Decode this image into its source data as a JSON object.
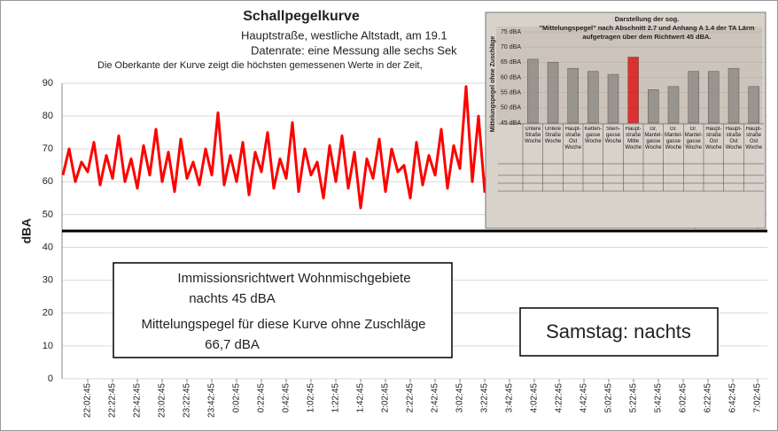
{
  "chart_data": [
    {
      "type": "line",
      "title": "Schallpegelkurve",
      "subtitles": [
        "Hauptstraße, westliche Altstadt, am 19.1",
        "Datenrate:  eine Messung alle sechs Sek",
        "Die Oberkante der Kurve zeigt die höchsten  gemessenen Werte  in der Zeit,"
      ],
      "ylabel": "dBA",
      "ylim": [
        0,
        90
      ],
      "yticks": [
        0,
        10,
        20,
        30,
        40,
        50,
        60,
        70,
        80,
        90
      ],
      "grid": true,
      "reference_line": 45,
      "color": "#ff0000",
      "categories": [
        null,
        null,
        null,
        null,
        "22:02:45",
        null,
        null,
        null,
        "22:22:45",
        null,
        null,
        null,
        "22:42:45",
        null,
        null,
        null,
        "23:02:45",
        null,
        null,
        null,
        "23:22:45",
        null,
        null,
        null,
        "23:42:45",
        null,
        null,
        null,
        "0:02:45",
        null,
        null,
        null,
        "0:22:45",
        null,
        null,
        null,
        "0:42:45",
        null,
        null,
        null,
        "1:02:45",
        null,
        null,
        null,
        "1:22:45",
        null,
        null,
        null,
        "1:42:45",
        null,
        null,
        null,
        "2:02:45",
        null,
        null,
        null,
        "2:22:45",
        null,
        null,
        null,
        "2:42:45",
        null,
        null,
        null,
        "3:02:45",
        null,
        null,
        null,
        "3:22:45",
        null,
        null,
        null,
        "3:42:45",
        null,
        null,
        null,
        "4:02:45",
        null,
        null,
        null,
        "4:22:45",
        null,
        null,
        null,
        "4:42:45",
        null,
        null,
        null,
        "5:02:45",
        null,
        null,
        null,
        "5:22:45",
        null,
        null,
        null,
        "5:42:45",
        null,
        null,
        null,
        "6:02:45",
        null,
        null,
        null,
        "6:22:45",
        null,
        null,
        null,
        "6:42:45",
        null,
        null,
        null,
        "7:02:45",
        null
      ],
      "values": [
        62,
        70,
        60,
        66,
        63,
        72,
        59,
        68,
        61,
        74,
        60,
        67,
        58,
        71,
        62,
        76,
        60,
        69,
        57,
        73,
        61,
        66,
        59,
        70,
        62,
        81,
        59,
        68,
        60,
        72,
        56,
        69,
        63,
        75,
        58,
        67,
        61,
        78,
        57,
        70,
        62,
        66,
        55,
        71,
        60,
        74,
        58,
        69,
        52,
        67,
        61,
        73,
        57,
        70,
        63,
        65,
        55,
        72,
        59,
        68,
        62,
        76,
        58,
        71,
        64,
        89,
        60,
        80,
        57,
        74,
        62,
        70,
        55,
        66,
        48,
        65,
        58,
        72,
        60,
        68,
        57,
        71,
        62,
        67,
        59,
        73,
        56,
        69,
        61,
        66,
        58,
        70,
        63,
        68,
        55,
        70,
        52,
        64,
        47,
        60,
        50,
        58,
        46,
        62,
        49,
        56,
        47,
        59,
        51,
        57,
        47,
        55,
        46,
        63
      ],
      "annotations": [
        [
          "Immissionsrichtwert Wohnmischgebiete",
          "nachts 45 dBA",
          "Mittelungspegel für diese Kurve ohne Zuschläge",
          "66,7 dBA"
        ],
        [
          "Samstag: nachts"
        ]
      ]
    },
    {
      "type": "bar",
      "title": [
        "Darstellung der sog.",
        "\"Mittelungspegel\" nach Abschnitt 2.7 und Anhang A 1.4 der TA Lärm",
        "aufgetragen über dem Richtwert 45 dBA."
      ],
      "ylabel": "Mittelungspegel ohne Zuschläge",
      "ylim": [
        45,
        75
      ],
      "yticks": [
        {
          "value": 45,
          "label": "45 dBA"
        },
        {
          "value": 50,
          "label": "50 dBA"
        },
        {
          "value": 55,
          "label": "55 dBA"
        },
        {
          "value": 60,
          "label": "60 dBA"
        },
        {
          "value": 65,
          "label": "65 dBA"
        },
        {
          "value": 70,
          "label": "70 dBA"
        },
        {
          "value": 75,
          "label": "75 dBA"
        }
      ],
      "categories": [
        "Untere Straße Woche",
        "Untere Straße Woche",
        "Haupt-straße Ost Woche",
        "Ketten-gasse Woche",
        "Stein-gasse Woche",
        "Haupt-straße Mitte Woche",
        "Gr. Mantel-gasse Woche",
        "Gr. Mantel-gasse Woche",
        "Gr. Mantel-gasse Woche",
        "Haupt-straße Ost Woche",
        "Haupt-straße Ost Woche",
        "Haupt-straße Ost Woche"
      ],
      "values": [
        66,
        65,
        63,
        62,
        61,
        66.7,
        56,
        57,
        62,
        62,
        63,
        57
      ],
      "colors": [
        "#8a8480",
        "#8a8480",
        "#8a8480",
        "#8a8480",
        "#8a8480",
        "#e00000",
        "#8a8480",
        "#8a8480",
        "#8a8480",
        "#8a8480",
        "#8a8480",
        "#8a8480"
      ]
    }
  ]
}
